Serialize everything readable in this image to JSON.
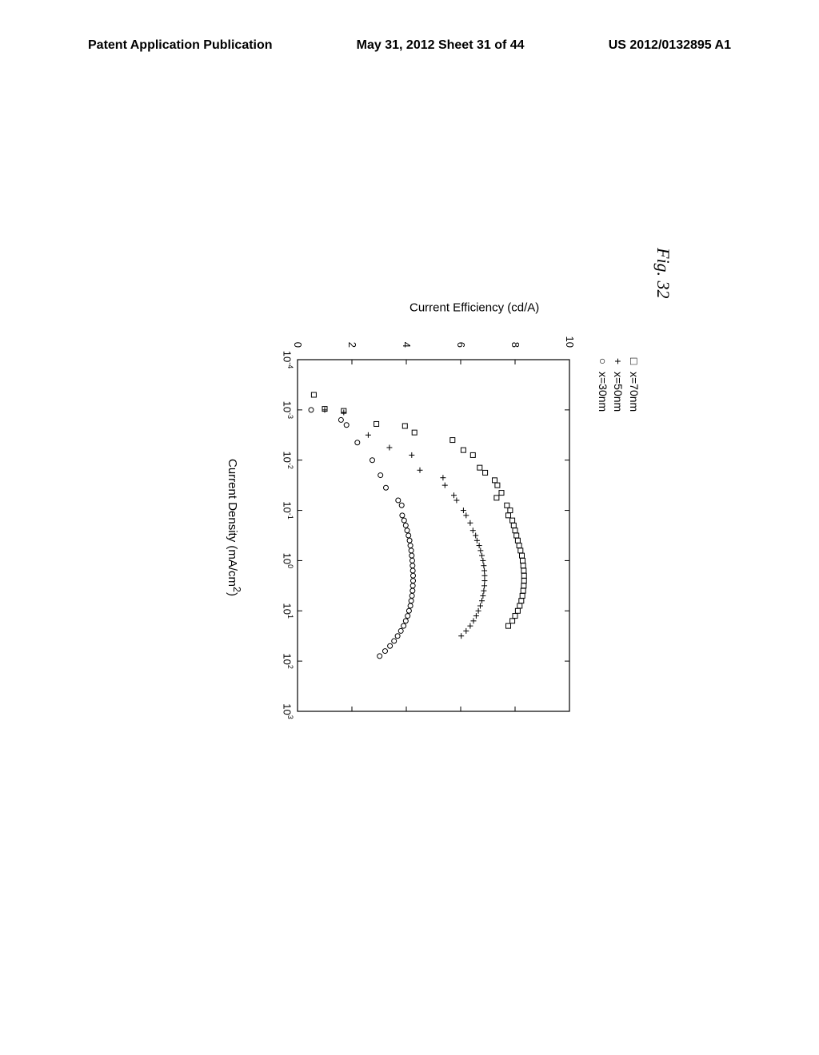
{
  "header": {
    "left": "Patent Application Publication",
    "center": "May 31, 2012  Sheet 31 of 44",
    "right": "US 2012/0132895 A1"
  },
  "figure": {
    "label": "Fig. 32",
    "legend": {
      "items": [
        {
          "marker": "□",
          "label": "x=70nm"
        },
        {
          "marker": "+",
          "label": "x=50nm"
        },
        {
          "marker": "○",
          "label": "x=30nm"
        }
      ]
    },
    "chart": {
      "type": "scatter",
      "xlabel": "Current Density (mA/cm²)",
      "ylabel": "Current Efficiency (cd/A)",
      "xlim": [
        -4,
        3
      ],
      "ylim": [
        0,
        10
      ],
      "xtick_exponents": [
        -4,
        -3,
        -2,
        -1,
        0,
        1,
        2,
        3
      ],
      "ytick_values": [
        0,
        2,
        4,
        6,
        8,
        10
      ],
      "xscale": "log",
      "background_color": "#ffffff",
      "axis_color": "#000000",
      "label_fontsize": 15,
      "tick_fontsize": 13,
      "series": [
        {
          "name": "x=70nm",
          "marker": "square",
          "color": "#000000",
          "points_logx_y": [
            [
              -3.3,
              0.6
            ],
            [
              -3.02,
              1.0
            ],
            [
              -2.98,
              1.7
            ],
            [
              -2.72,
              2.9
            ],
            [
              -2.68,
              3.95
            ],
            [
              -2.55,
              4.3
            ],
            [
              -2.4,
              5.7
            ],
            [
              -2.2,
              6.1
            ],
            [
              -2.1,
              6.45
            ],
            [
              -1.85,
              6.7
            ],
            [
              -1.75,
              6.9
            ],
            [
              -1.6,
              7.25
            ],
            [
              -1.5,
              7.35
            ],
            [
              -1.35,
              7.5
            ],
            [
              -1.25,
              7.32
            ],
            [
              -1.1,
              7.7
            ],
            [
              -1.0,
              7.82
            ],
            [
              -0.9,
              7.75
            ],
            [
              -0.8,
              7.9
            ],
            [
              -0.7,
              7.95
            ],
            [
              -0.6,
              8.0
            ],
            [
              -0.5,
              8.05
            ],
            [
              -0.4,
              8.1
            ],
            [
              -0.3,
              8.15
            ],
            [
              -0.2,
              8.2
            ],
            [
              -0.1,
              8.25
            ],
            [
              0.0,
              8.28
            ],
            [
              0.1,
              8.3
            ],
            [
              0.2,
              8.32
            ],
            [
              0.3,
              8.33
            ],
            [
              0.4,
              8.33
            ],
            [
              0.5,
              8.32
            ],
            [
              0.6,
              8.3
            ],
            [
              0.7,
              8.27
            ],
            [
              0.8,
              8.23
            ],
            [
              0.9,
              8.17
            ],
            [
              1.0,
              8.1
            ],
            [
              1.1,
              8.0
            ],
            [
              1.2,
              7.9
            ],
            [
              1.3,
              7.75
            ]
          ]
        },
        {
          "name": "x=50nm",
          "marker": "plus",
          "color": "#000000",
          "points_logx_y": [
            [
              -3.0,
              1.0
            ],
            [
              -2.95,
              1.7
            ],
            [
              -2.5,
              2.6
            ],
            [
              -2.25,
              3.38
            ],
            [
              -2.1,
              4.2
            ],
            [
              -1.8,
              4.5
            ],
            [
              -1.65,
              5.35
            ],
            [
              -1.5,
              5.42
            ],
            [
              -1.3,
              5.75
            ],
            [
              -1.2,
              5.85
            ],
            [
              -1.0,
              6.1
            ],
            [
              -0.9,
              6.2
            ],
            [
              -0.75,
              6.35
            ],
            [
              -0.6,
              6.45
            ],
            [
              -0.5,
              6.55
            ],
            [
              -0.4,
              6.6
            ],
            [
              -0.3,
              6.68
            ],
            [
              -0.2,
              6.73
            ],
            [
              -0.1,
              6.78
            ],
            [
              0.0,
              6.82
            ],
            [
              0.1,
              6.85
            ],
            [
              0.2,
              6.87
            ],
            [
              0.3,
              6.88
            ],
            [
              0.4,
              6.88
            ],
            [
              0.5,
              6.87
            ],
            [
              0.6,
              6.85
            ],
            [
              0.7,
              6.82
            ],
            [
              0.8,
              6.78
            ],
            [
              0.9,
              6.72
            ],
            [
              1.0,
              6.65
            ],
            [
              1.1,
              6.57
            ],
            [
              1.2,
              6.47
            ],
            [
              1.3,
              6.35
            ],
            [
              1.4,
              6.2
            ],
            [
              1.5,
              6.02
            ]
          ]
        },
        {
          "name": "x=30nm",
          "marker": "circle",
          "color": "#000000",
          "points_logx_y": [
            [
              -3.0,
              0.5
            ],
            [
              -2.8,
              1.6
            ],
            [
              -2.7,
              1.8
            ],
            [
              -2.35,
              2.2
            ],
            [
              -2.0,
              2.75
            ],
            [
              -1.7,
              3.05
            ],
            [
              -1.45,
              3.25
            ],
            [
              -1.2,
              3.7
            ],
            [
              -1.1,
              3.83
            ],
            [
              -0.9,
              3.85
            ],
            [
              -0.8,
              3.92
            ],
            [
              -0.7,
              3.98
            ],
            [
              -0.6,
              4.03
            ],
            [
              -0.5,
              4.08
            ],
            [
              -0.4,
              4.12
            ],
            [
              -0.3,
              4.15
            ],
            [
              -0.2,
              4.18
            ],
            [
              -0.1,
              4.2
            ],
            [
              0.0,
              4.22
            ],
            [
              0.1,
              4.23
            ],
            [
              0.2,
              4.24
            ],
            [
              0.3,
              4.25
            ],
            [
              0.4,
              4.25
            ],
            [
              0.5,
              4.24
            ],
            [
              0.6,
              4.23
            ],
            [
              0.7,
              4.21
            ],
            [
              0.8,
              4.18
            ],
            [
              0.9,
              4.15
            ],
            [
              1.0,
              4.1
            ],
            [
              1.1,
              4.05
            ],
            [
              1.2,
              3.98
            ],
            [
              1.3,
              3.9
            ],
            [
              1.4,
              3.8
            ],
            [
              1.5,
              3.68
            ],
            [
              1.6,
              3.55
            ],
            [
              1.7,
              3.4
            ],
            [
              1.8,
              3.22
            ],
            [
              1.9,
              3.02
            ]
          ]
        }
      ]
    }
  }
}
